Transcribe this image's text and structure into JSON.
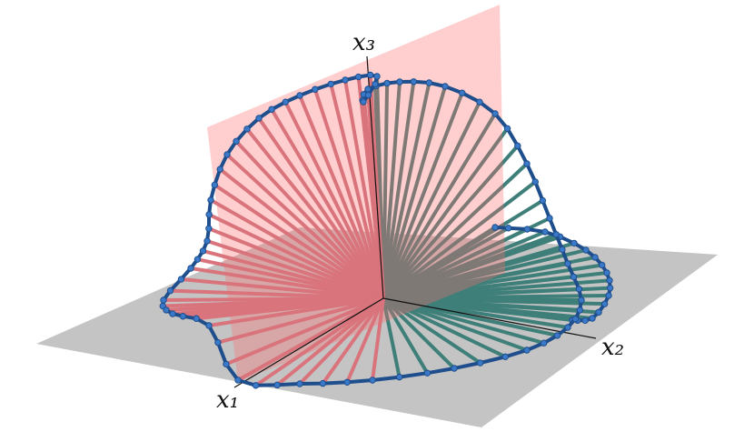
{
  "axes": {
    "x1": "x₁",
    "x2": "x₂",
    "x3": "x₃"
  }
}
